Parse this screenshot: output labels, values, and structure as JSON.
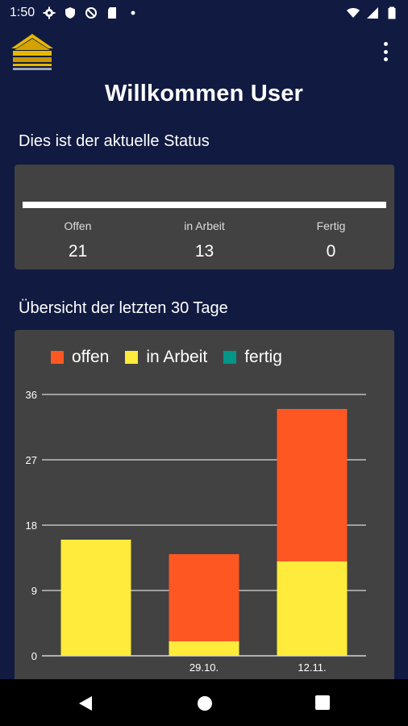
{
  "status_bar": {
    "time": "1:50",
    "icons": [
      "gear-icon",
      "shield-icon",
      "no-sync-icon",
      "sd-card-icon",
      "dot-icon"
    ],
    "right_icons": [
      "wifi-icon",
      "signal-icon",
      "battery-icon"
    ]
  },
  "app_bar": {
    "logo_icon": "stone-block-logo",
    "menu_icon": "more-vert-icon"
  },
  "welcome": "Willkommen User",
  "status_section": {
    "title": "Dies ist der aktuelle Status",
    "stats": [
      {
        "label": "Offen",
        "value": "21"
      },
      {
        "label": "in Arbeit",
        "value": "13"
      },
      {
        "label": "Fertig",
        "value": "0"
      }
    ]
  },
  "overview_section": {
    "title": "Übersicht der letzten 30 Tage"
  },
  "chart_data": {
    "type": "bar",
    "stacked": true,
    "categories": [
      "",
      "29.10.",
      "12.11."
    ],
    "series": [
      {
        "name": "in Arbeit",
        "color": "#ffeb3b",
        "values": [
          16,
          2,
          13
        ]
      },
      {
        "name": "offen",
        "color": "#ff5722",
        "values": [
          0,
          12,
          21
        ]
      },
      {
        "name": "fertig",
        "color": "#009688",
        "values": [
          0,
          0,
          0
        ]
      }
    ],
    "legend_order": [
      "offen",
      "in Arbeit",
      "fertig"
    ],
    "yticks": [
      "0",
      "9",
      "18",
      "27",
      "36"
    ],
    "ylim": [
      0,
      36
    ],
    "grid": true,
    "legend_position": "top"
  },
  "nav_bar": {
    "icons": [
      "back-icon",
      "home-icon",
      "recents-icon"
    ]
  }
}
